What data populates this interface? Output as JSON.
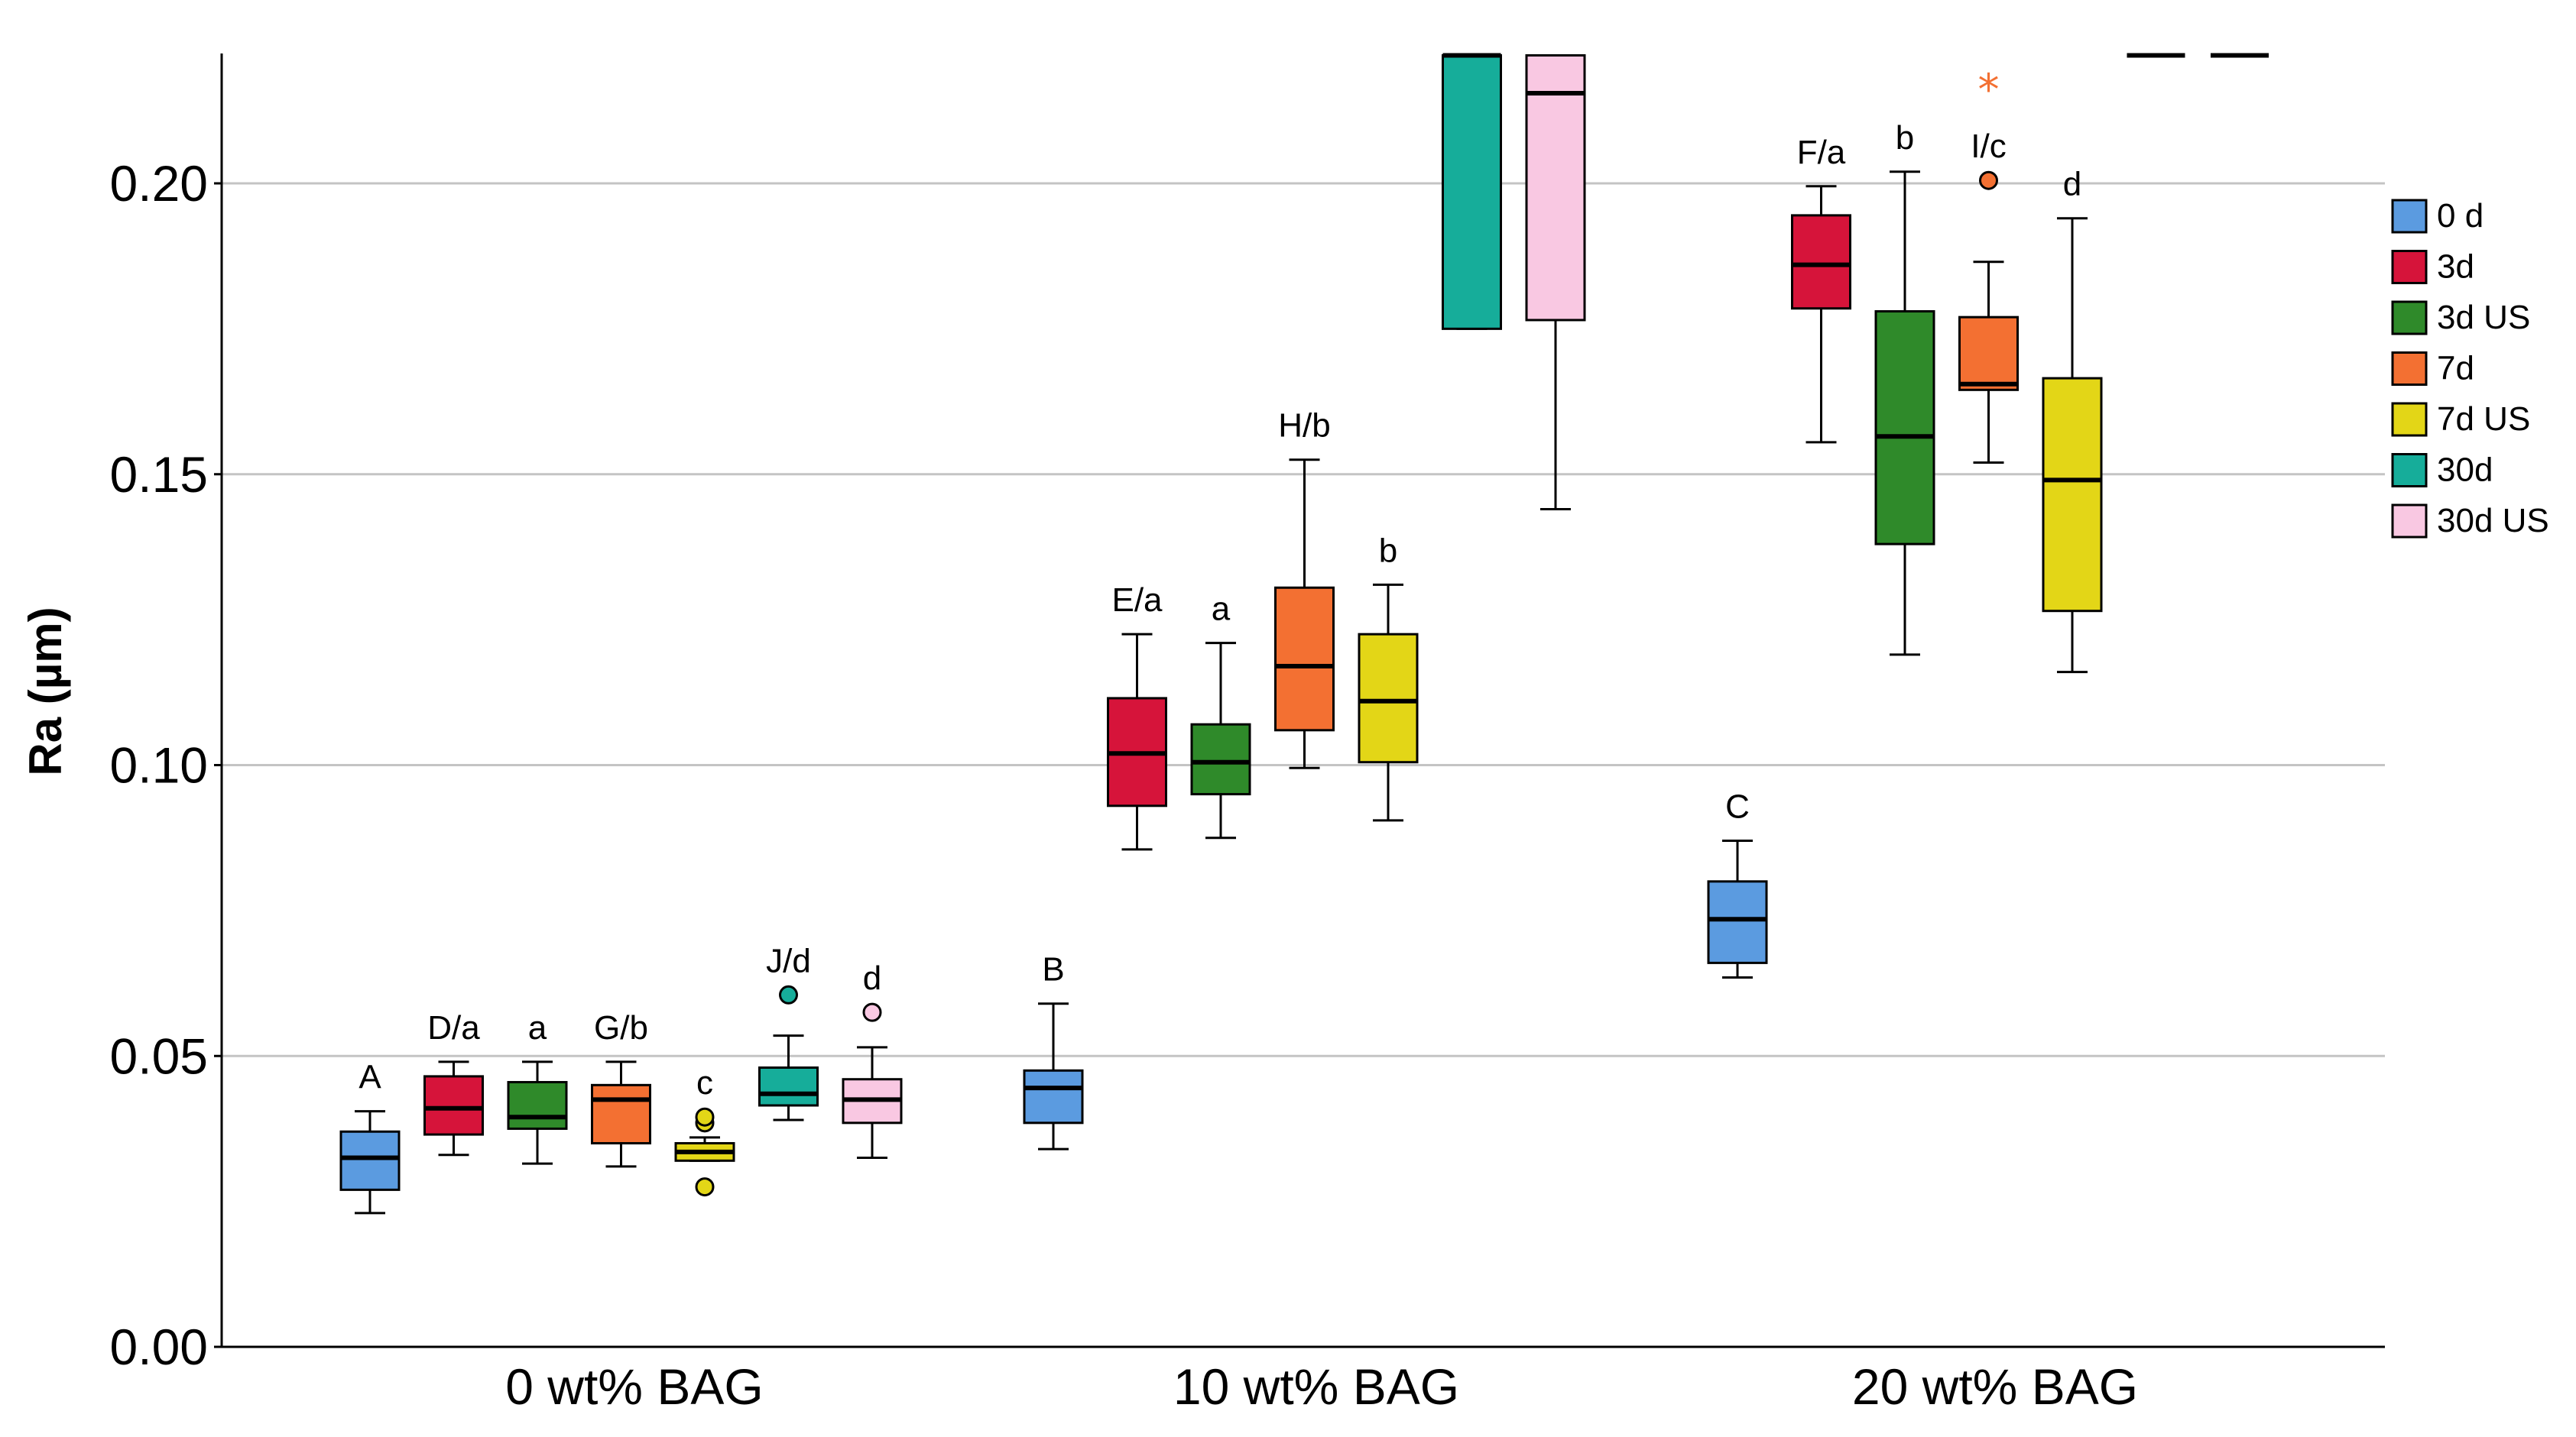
{
  "chart_data": {
    "type": "boxplot",
    "title": "",
    "xlabel": "",
    "ylabel": "Ra (µm)",
    "ylim": [
      0,
      0.222
    ],
    "yticks": [
      "0.00",
      "0.05",
      "0.10",
      "0.15",
      "0.20"
    ],
    "ytick_values": [
      0,
      0.05,
      0.1,
      0.15,
      0.2
    ],
    "grid": "horizontal",
    "legend_position": "right",
    "categories": [
      "0 wt% BAG",
      "10 wt% BAG",
      "20 wt% BAG"
    ],
    "series": [
      {
        "name": "0 d",
        "color": "#5b9be0"
      },
      {
        "name": "3d",
        "color": "#d6143a"
      },
      {
        "name": "3d US",
        "color": "#2f8a2a"
      },
      {
        "name": "7d",
        "color": "#f37032"
      },
      {
        "name": "7d US",
        "color": "#e3d617"
      },
      {
        "name": "30d",
        "color": "#16ad9a"
      },
      {
        "name": "30d US",
        "color": "#f9c8e2"
      }
    ],
    "boxes": [
      {
        "category": 0,
        "series": 0,
        "min": 0.023,
        "q1": 0.027,
        "median": 0.0325,
        "q3": 0.037,
        "max": 0.0405,
        "label": "A",
        "outliers": []
      },
      {
        "category": 0,
        "series": 1,
        "min": 0.033,
        "q1": 0.0365,
        "median": 0.041,
        "q3": 0.0465,
        "max": 0.049,
        "label": "D/a",
        "outliers": []
      },
      {
        "category": 0,
        "series": 2,
        "min": 0.0315,
        "q1": 0.0375,
        "median": 0.0395,
        "q3": 0.0455,
        "max": 0.049,
        "label": "a",
        "outliers": []
      },
      {
        "category": 0,
        "series": 3,
        "min": 0.031,
        "q1": 0.035,
        "median": 0.0425,
        "q3": 0.045,
        "max": 0.049,
        "label": "G/b",
        "outliers": []
      },
      {
        "category": 0,
        "series": 4,
        "min": 0.032,
        "q1": 0.032,
        "median": 0.0335,
        "q3": 0.035,
        "max": 0.036,
        "label": "c",
        "outliers": [
          0.0275,
          0.0385,
          0.0395
        ]
      },
      {
        "category": 0,
        "series": 5,
        "min": 0.039,
        "q1": 0.0415,
        "median": 0.0435,
        "q3": 0.048,
        "max": 0.0535,
        "label": "J/d",
        "outliers": [
          0.0605
        ]
      },
      {
        "category": 0,
        "series": 6,
        "min": 0.0325,
        "q1": 0.0385,
        "median": 0.0425,
        "q3": 0.046,
        "max": 0.0515,
        "label": "d",
        "outliers": [
          0.0575
        ]
      },
      {
        "category": 1,
        "series": 0,
        "min": 0.034,
        "q1": 0.0385,
        "median": 0.0445,
        "q3": 0.0475,
        "max": 0.059,
        "label": "B",
        "outliers": []
      },
      {
        "category": 1,
        "series": 1,
        "min": 0.0855,
        "q1": 0.093,
        "median": 0.102,
        "q3": 0.1115,
        "max": 0.1225,
        "label": "E/a",
        "outliers": []
      },
      {
        "category": 1,
        "series": 2,
        "min": 0.0875,
        "q1": 0.095,
        "median": 0.1005,
        "q3": 0.107,
        "max": 0.121,
        "label": "a",
        "outliers": []
      },
      {
        "category": 1,
        "series": 3,
        "min": 0.0995,
        "q1": 0.106,
        "median": 0.117,
        "q3": 0.1305,
        "max": 0.1525,
        "label": "H/b",
        "outliers": []
      },
      {
        "category": 1,
        "series": 4,
        "min": 0.0905,
        "q1": 0.1005,
        "median": 0.111,
        "q3": 0.1225,
        "max": 0.131,
        "label": "b",
        "outliers": []
      },
      {
        "category": 1,
        "series": 5,
        "min": 0.175,
        "q1": 0.175,
        "median": 0.222,
        "q3": 0.222,
        "max": 0.222,
        "label": "",
        "outliers": []
      },
      {
        "category": 1,
        "series": 6,
        "min": 0.144,
        "q1": 0.1765,
        "median": 0.2155,
        "q3": 0.222,
        "max": 0.222,
        "label": "",
        "outliers": []
      },
      {
        "category": 2,
        "series": 0,
        "min": 0.0635,
        "q1": 0.066,
        "median": 0.0735,
        "q3": 0.08,
        "max": 0.087,
        "label": "C",
        "outliers": []
      },
      {
        "category": 2,
        "series": 1,
        "min": 0.1555,
        "q1": 0.1785,
        "median": 0.186,
        "q3": 0.1945,
        "max": 0.1995,
        "label": "F/a",
        "outliers": []
      },
      {
        "category": 2,
        "series": 2,
        "min": 0.119,
        "q1": 0.138,
        "median": 0.1565,
        "q3": 0.178,
        "max": 0.202,
        "label": "b",
        "outliers": []
      },
      {
        "category": 2,
        "series": 3,
        "min": 0.152,
        "q1": 0.1645,
        "median": 0.1655,
        "q3": 0.177,
        "max": 0.1865,
        "label": "I/c",
        "outliers": [
          0.2005
        ],
        "extremes": [
          0.217
        ]
      },
      {
        "category": 2,
        "series": 4,
        "min": 0.116,
        "q1": 0.1265,
        "median": 0.149,
        "q3": 0.1665,
        "max": 0.194,
        "label": "d",
        "outliers": []
      },
      {
        "category": 2,
        "series": 5,
        "min": 0.222,
        "q1": 0.222,
        "median": 0.222,
        "q3": 0.222,
        "max": 0.222,
        "label": "",
        "outliers": []
      },
      {
        "category": 2,
        "series": 6,
        "min": 0.222,
        "q1": 0.222,
        "median": 0.222,
        "q3": 0.222,
        "max": 0.222,
        "label": "",
        "outliers": []
      }
    ]
  }
}
